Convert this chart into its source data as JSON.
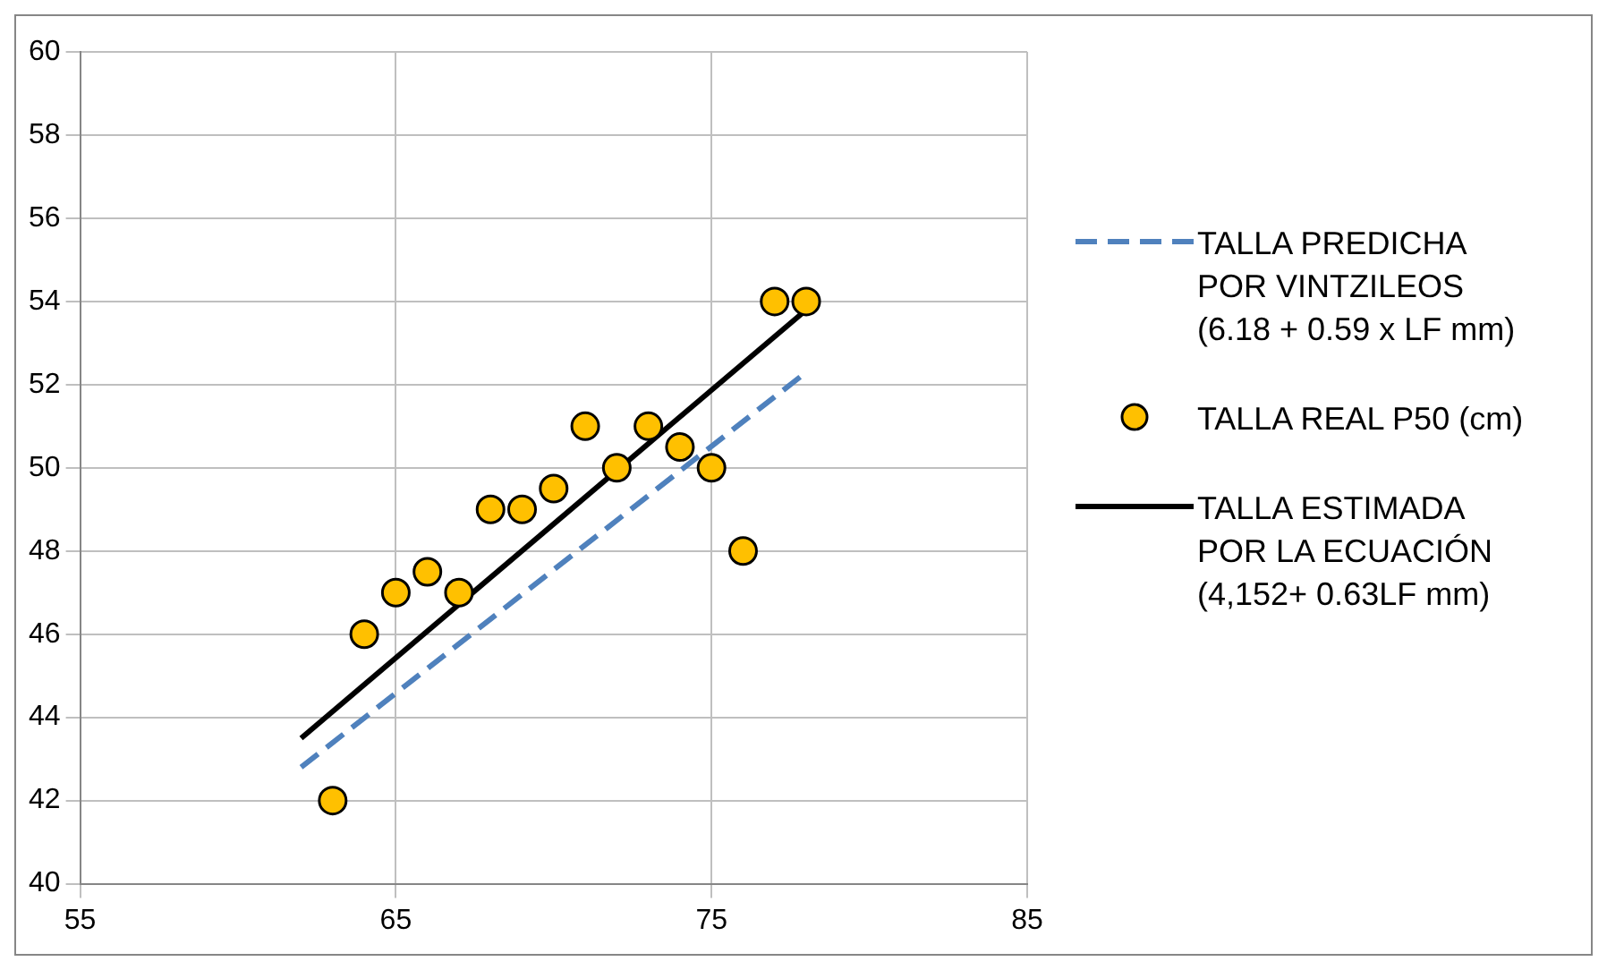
{
  "chart_data": {
    "type": "scatter",
    "xlim": [
      55,
      85
    ],
    "xticks": [
      55,
      65,
      75,
      85
    ],
    "ylim": [
      40,
      60
    ],
    "yticks": [
      40,
      42,
      44,
      46,
      48,
      50,
      52,
      54,
      56,
      58,
      60
    ],
    "grid": true,
    "legend": "right",
    "series": [
      {
        "name": "TALLA PREDICHA POR VINTZILEOS (6.18 + 0.59 x LF mm)",
        "type": "line",
        "color": "#4f81bd",
        "line_style": "dashed",
        "marker": "none",
        "x": [
          62,
          78
        ],
        "values": [
          42.8,
          52.3
        ]
      },
      {
        "name": "TALLA REAL P50 (cm)",
        "color": "#ffc000",
        "marker": "circle",
        "x": [
          63,
          64,
          65,
          66,
          67,
          68,
          69,
          70,
          71,
          72,
          73,
          74,
          75,
          76,
          77,
          78
        ],
        "values": [
          42,
          46,
          47,
          47.5,
          47,
          49,
          49,
          49.5,
          51,
          50,
          51,
          50.5,
          50,
          48,
          54,
          54
        ]
      },
      {
        "name": "TALLA ESTIMADA POR LA ECUACIÓN (4,152+ 0.63LF mm)",
        "type": "line",
        "color": "#000000",
        "line_style": "solid",
        "marker": "none",
        "x": [
          62,
          78
        ],
        "values": [
          43.5,
          53.8
        ]
      }
    ]
  }
}
